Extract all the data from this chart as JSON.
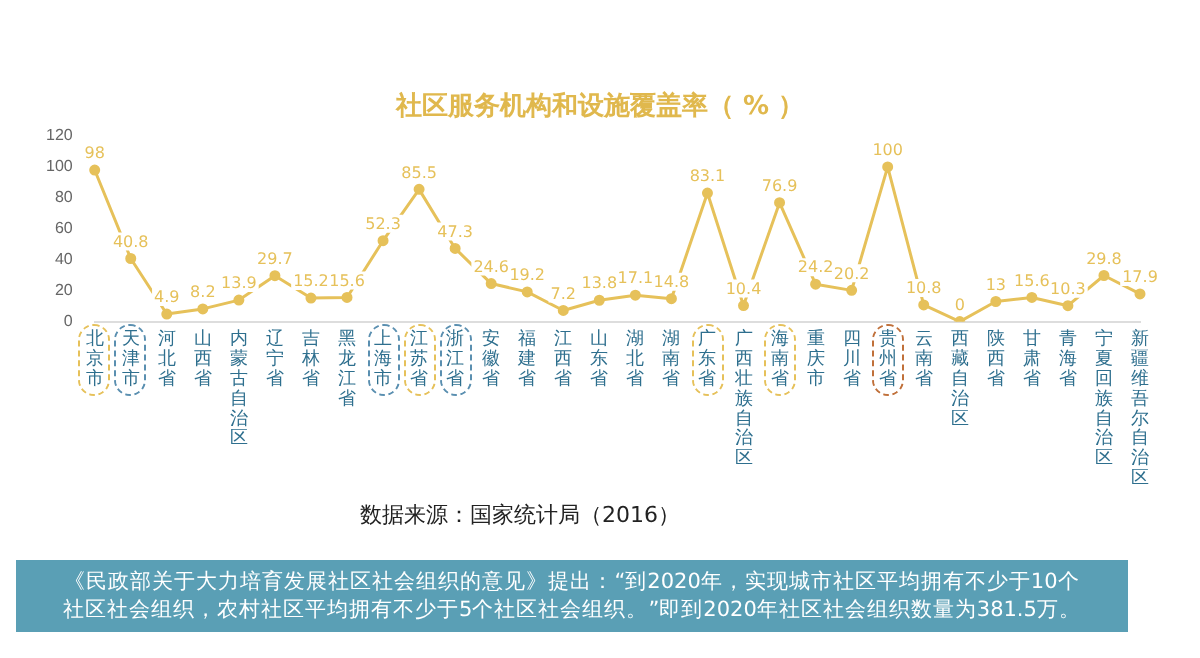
{
  "chart_data": {
    "type": "line",
    "title": "社区服务机构和设施覆盖率（ % ）",
    "categories": [
      "北京市",
      "天津市",
      "河北省",
      "山西省",
      "内蒙古自治区",
      "辽宁省",
      "吉林省",
      "黑龙江省",
      "上海市",
      "江苏省",
      "浙江省",
      "安徽省",
      "福建省",
      "江西省",
      "山东省",
      "湖北省",
      "湖南省",
      "广东省",
      "广西壮族自治区",
      "海南省",
      "重庆市",
      "四川省",
      "贵州省",
      "云南省",
      "西藏自治区",
      "陕西省",
      "甘肃省",
      "青海省",
      "宁夏回族自治区",
      "新疆维吾尔自治区"
    ],
    "series": [
      {
        "color": "#e6c15a",
        "values": [
          98,
          40.8,
          4.9,
          8.2,
          13.9,
          29.7,
          15.2,
          15.6,
          52.3,
          85.5,
          47.3,
          24.6,
          19.2,
          7.2,
          13.8,
          17.1,
          14.8,
          83.1,
          10.4,
          76.9,
          24.2,
          20.2,
          100,
          10.8,
          0,
          13,
          15.6,
          10.3,
          29.8,
          17.9
        ]
      }
    ],
    "ylim": [
      0,
      120
    ],
    "yticks": [
      0,
      20,
      40,
      60,
      80,
      100,
      120
    ],
    "grid": false,
    "legend": false,
    "marker": "circle",
    "data_labels": true,
    "annotations": [
      "数据来源：国家统计局（2016）",
      "《民政部关于大力培育发展社区社会组织的意见》提出：“到2020年，实现城市社区平均拥有不少于10个社区社会组织，农村社区平均拥有不少于5个社区社会组织。”即到2020年社区社会组织数量为381.5万。"
    ]
  }
}
